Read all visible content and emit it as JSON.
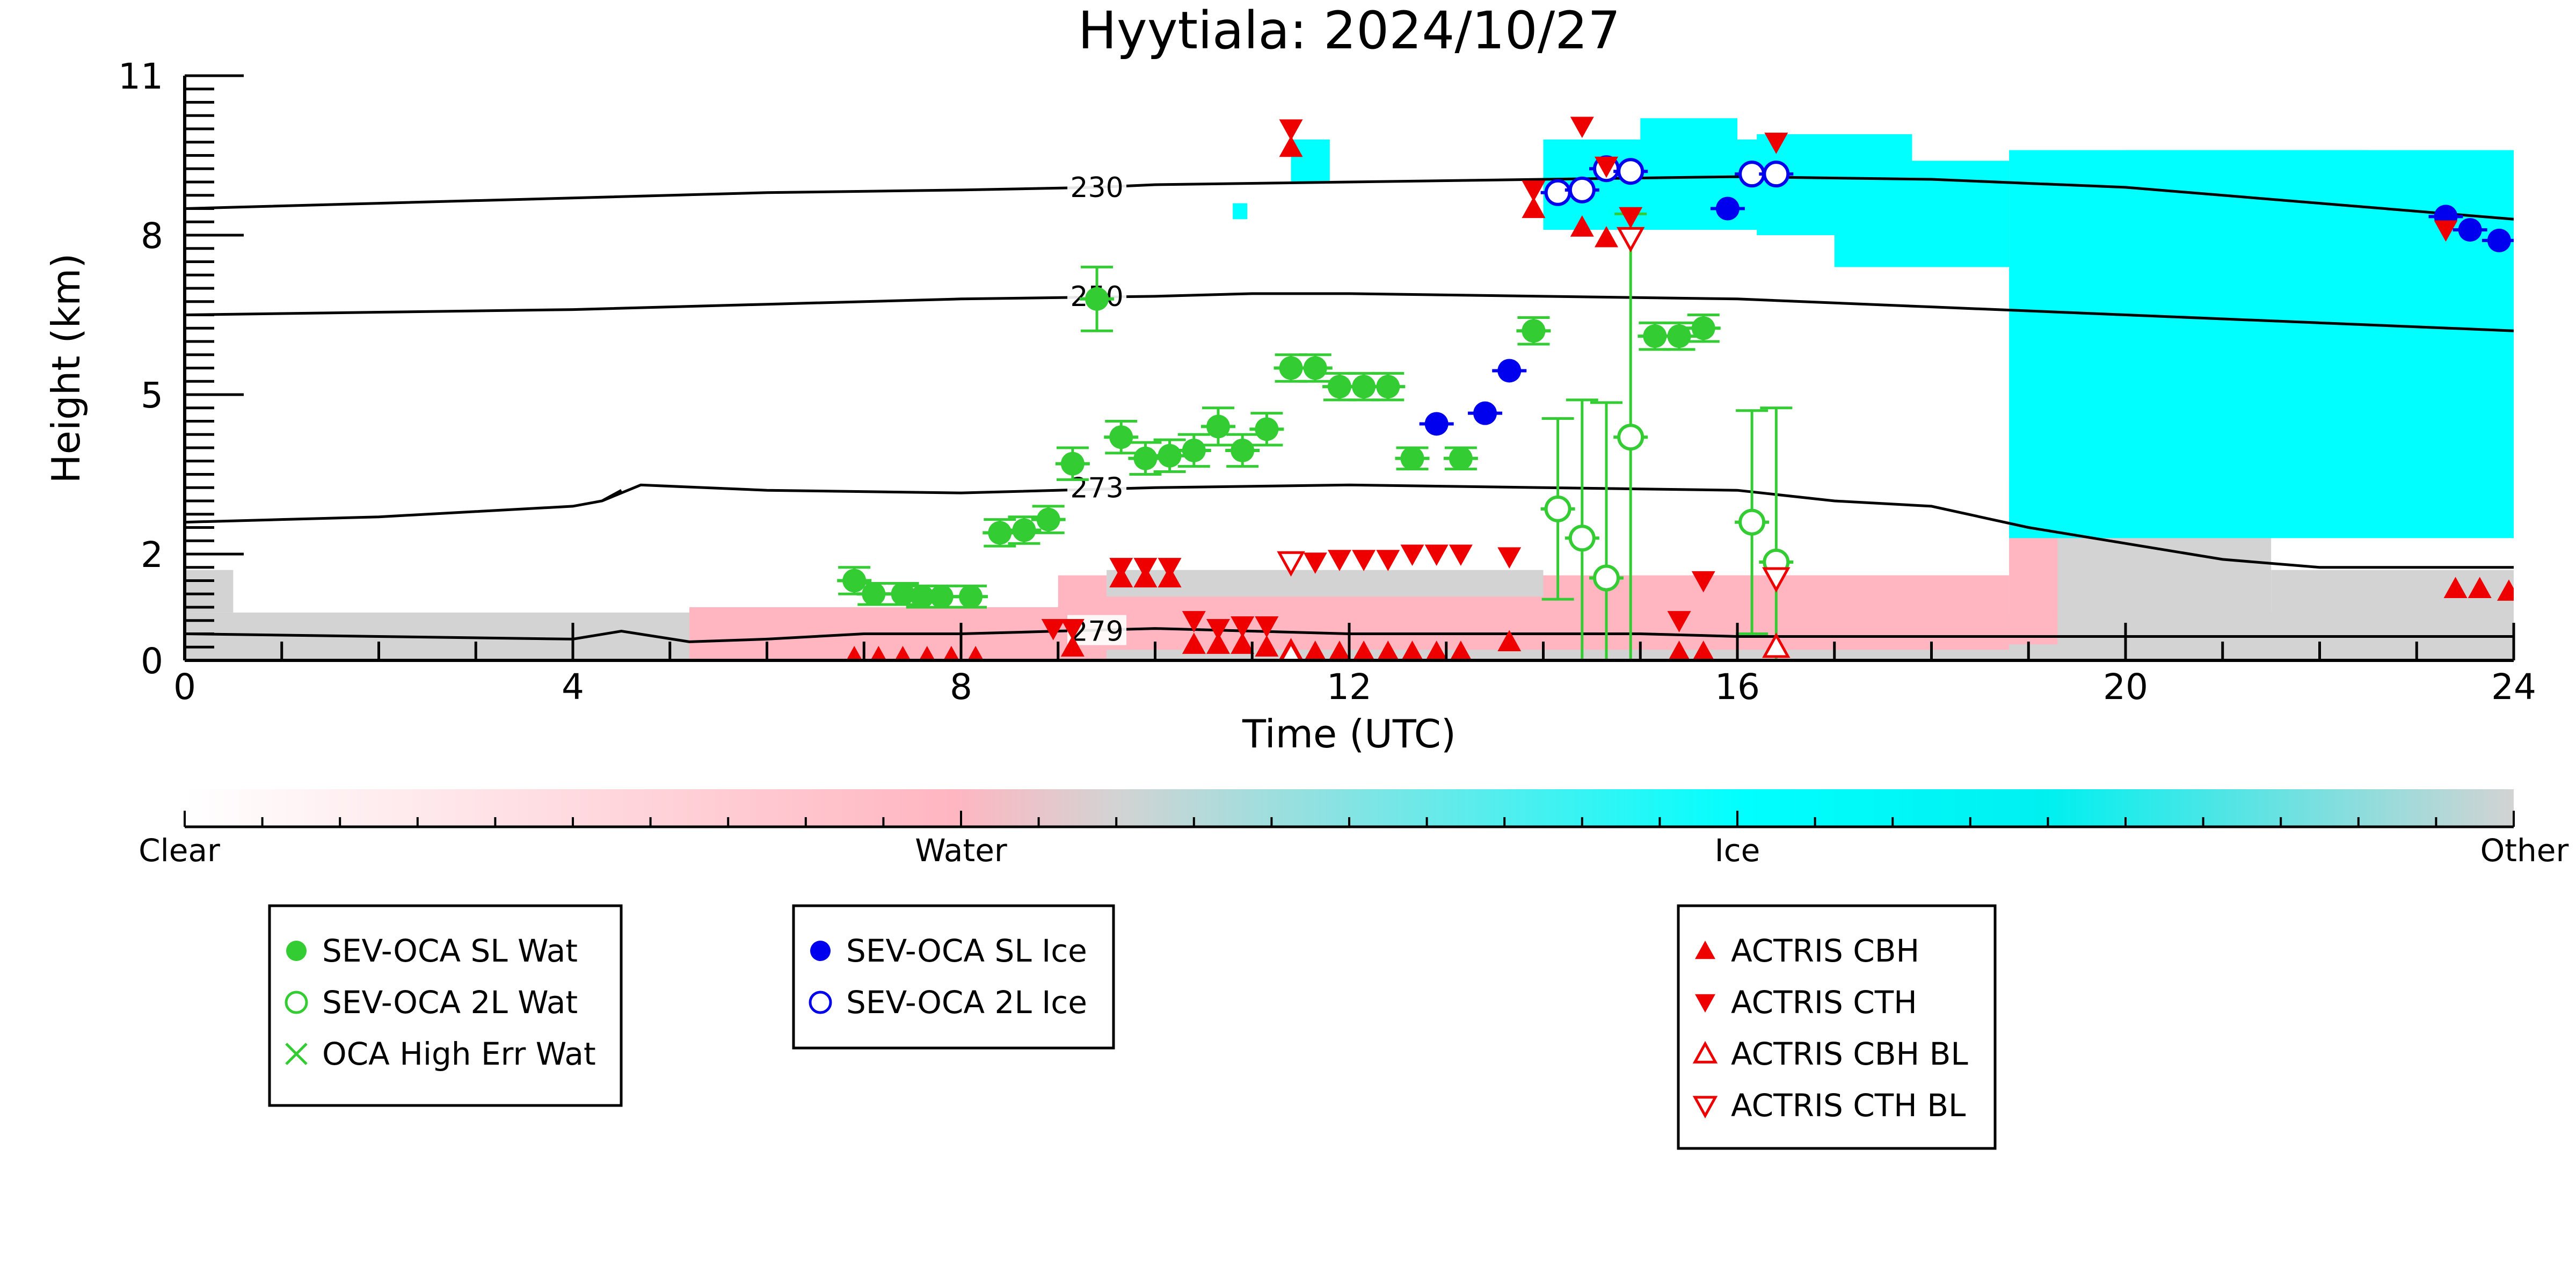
{
  "chart_data": {
    "type": "scatter",
    "title": "Hyytiala: 2024/10/27",
    "xlabel": "Time (UTC)",
    "ylabel": "Height (km)",
    "xlim": [
      0,
      24
    ],
    "ylim": [
      0,
      11
    ],
    "x_ticks": [
      "0",
      "4",
      "8",
      "12",
      "16",
      "20",
      "24"
    ],
    "y_ticks": [
      "0",
      "2",
      "5",
      "8",
      "11"
    ],
    "grid": false,
    "background_classification": {
      "colorbar_labels": [
        "Clear",
        "Water",
        "Ice",
        "Other"
      ],
      "colors": {
        "clear": "#ffffff",
        "water": "#ffb6c1",
        "ice": "#00ffff",
        "other": "#d3d3d3"
      }
    },
    "contours": [
      {
        "label": "230",
        "x": [
          0,
          2,
          4,
          6,
          8,
          9.4,
          10,
          12,
          14,
          16,
          18,
          20,
          22,
          24
        ],
        "y": [
          8.5,
          8.6,
          8.7,
          8.8,
          8.85,
          8.9,
          8.95,
          9.0,
          9.05,
          9.1,
          9.05,
          8.9,
          8.6,
          8.3
        ]
      },
      {
        "label": "250",
        "x": [
          0,
          2,
          4,
          6,
          8,
          10,
          11,
          12,
          14,
          16,
          18,
          20,
          22,
          24
        ],
        "y": [
          6.5,
          6.55,
          6.6,
          6.7,
          6.8,
          6.85,
          6.9,
          6.9,
          6.85,
          6.8,
          6.65,
          6.5,
          6.35,
          6.2
        ]
      },
      {
        "label": "273",
        "x": [
          0,
          1,
          2,
          3,
          4,
          4.3,
          4.5,
          4.3,
          4.7,
          6,
          8,
          10,
          12,
          14,
          16,
          17,
          18,
          19,
          20,
          21,
          22,
          23,
          24
        ],
        "y": [
          2.6,
          2.65,
          2.7,
          2.8,
          2.9,
          3.0,
          3.2,
          3.0,
          3.3,
          3.2,
          3.15,
          3.25,
          3.3,
          3.25,
          3.2,
          3.0,
          2.9,
          2.5,
          2.2,
          1.9,
          1.75,
          1.75,
          1.75
        ]
      },
      {
        "label": "279",
        "x": [
          0,
          2,
          4,
          4.5,
          5.2,
          6,
          7,
          8,
          9,
          10,
          11,
          12,
          13,
          14,
          15,
          16,
          18,
          20,
          22,
          24
        ],
        "y": [
          0.5,
          0.45,
          0.4,
          0.55,
          0.35,
          0.4,
          0.5,
          0.5,
          0.55,
          0.6,
          0.55,
          0.5,
          0.5,
          0.5,
          0.5,
          0.45,
          0.45,
          0.45,
          0.45,
          0.45
        ]
      }
    ],
    "series": [
      {
        "name": "SEV-OCA SL Wat",
        "marker": "filled-circle",
        "color": "#33cc33",
        "points": [
          {
            "x": 6.9,
            "y": 1.5,
            "err": 0.25
          },
          {
            "x": 7.1,
            "y": 1.25,
            "err": 0.2
          },
          {
            "x": 7.4,
            "y": 1.25,
            "err": 0.2
          },
          {
            "x": 7.6,
            "y": 1.2,
            "err": 0.2
          },
          {
            "x": 7.8,
            "y": 1.2,
            "err": 0.2
          },
          {
            "x": 8.1,
            "y": 1.2,
            "err": 0.2
          },
          {
            "x": 8.4,
            "y": 2.4,
            "err": 0.25
          },
          {
            "x": 8.65,
            "y": 2.45,
            "err": 0.25
          },
          {
            "x": 8.9,
            "y": 2.65,
            "err": 0.25
          },
          {
            "x": 9.15,
            "y": 3.7,
            "err": 0.3
          },
          {
            "x": 9.4,
            "y": 6.8,
            "err": 0.6
          },
          {
            "x": 9.65,
            "y": 4.2,
            "err": 0.3
          },
          {
            "x": 9.9,
            "y": 3.8,
            "err": 0.3
          },
          {
            "x": 10.15,
            "y": 3.85,
            "err": 0.3
          },
          {
            "x": 10.4,
            "y": 3.95,
            "err": 0.3
          },
          {
            "x": 10.65,
            "y": 4.4,
            "err": 0.35
          },
          {
            "x": 10.9,
            "y": 3.95,
            "err": 0.3
          },
          {
            "x": 11.15,
            "y": 4.35,
            "err": 0.3
          },
          {
            "x": 11.4,
            "y": 5.5,
            "err": 0.25
          },
          {
            "x": 11.65,
            "y": 5.5,
            "err": 0.25
          },
          {
            "x": 11.9,
            "y": 5.15,
            "err": 0.25
          },
          {
            "x": 12.15,
            "y": 5.15,
            "err": 0.25
          },
          {
            "x": 12.4,
            "y": 5.15,
            "err": 0.25
          },
          {
            "x": 12.65,
            "y": 3.8,
            "err": 0.2
          },
          {
            "x": 13.15,
            "y": 3.8,
            "err": 0.2
          },
          {
            "x": 13.9,
            "y": 6.2,
            "err": 0.25
          },
          {
            "x": 15.15,
            "y": 6.1,
            "err": 0.25
          },
          {
            "x": 15.4,
            "y": 6.1,
            "err": 0.25
          },
          {
            "x": 15.65,
            "y": 6.25,
            "err": 0.25
          }
        ]
      },
      {
        "name": "SEV-OCA 2L Wat",
        "marker": "open-circle",
        "color": "#33cc33",
        "points": [
          {
            "x": 14.15,
            "y": 2.85,
            "err": 1.7
          },
          {
            "x": 14.4,
            "y": 2.3,
            "err": 2.6
          },
          {
            "x": 14.65,
            "y": 1.55,
            "err": 3.3
          },
          {
            "x": 14.9,
            "y": 4.2,
            "err": 4.2
          },
          {
            "x": 16.15,
            "y": 2.6,
            "err": 2.1
          },
          {
            "x": 16.4,
            "y": 1.85,
            "err": 2.9
          }
        ]
      },
      {
        "name": "OCA High Err Wat",
        "marker": "x",
        "color": "#33cc33",
        "points": []
      },
      {
        "name": "SEV-OCA SL Ice",
        "marker": "filled-circle",
        "color": "#0000ee",
        "points": [
          {
            "x": 12.9,
            "y": 4.45
          },
          {
            "x": 13.4,
            "y": 4.65
          },
          {
            "x": 13.65,
            "y": 5.45
          },
          {
            "x": 15.9,
            "y": 8.5
          },
          {
            "x": 23.3,
            "y": 8.35
          },
          {
            "x": 23.55,
            "y": 8.1
          },
          {
            "x": 23.85,
            "y": 7.9
          }
        ]
      },
      {
        "name": "SEV-OCA 2L Ice",
        "marker": "open-circle",
        "color": "#0000ee",
        "points": [
          {
            "x": 14.15,
            "y": 8.8
          },
          {
            "x": 14.4,
            "y": 8.85
          },
          {
            "x": 14.65,
            "y": 9.25
          },
          {
            "x": 14.9,
            "y": 9.2
          },
          {
            "x": 16.15,
            "y": 9.15
          },
          {
            "x": 16.4,
            "y": 9.15
          }
        ]
      },
      {
        "name": "ACTRIS CBH",
        "marker": "triangle-up",
        "color": "#ee0000",
        "points": [
          {
            "x": 6.9,
            "y": 0.05
          },
          {
            "x": 7.15,
            "y": 0.05
          },
          {
            "x": 7.4,
            "y": 0.05
          },
          {
            "x": 7.65,
            "y": 0.05
          },
          {
            "x": 7.9,
            "y": 0.05
          },
          {
            "x": 8.15,
            "y": 0.05
          },
          {
            "x": 9.15,
            "y": 0.25
          },
          {
            "x": 9.65,
            "y": 1.55
          },
          {
            "x": 9.9,
            "y": 1.55
          },
          {
            "x": 10.15,
            "y": 1.55
          },
          {
            "x": 10.4,
            "y": 0.3
          },
          {
            "x": 10.65,
            "y": 0.3
          },
          {
            "x": 10.9,
            "y": 0.3
          },
          {
            "x": 11.15,
            "y": 0.25
          },
          {
            "x": 11.4,
            "y": 0.2
          },
          {
            "x": 11.65,
            "y": 0.15
          },
          {
            "x": 11.9,
            "y": 0.15
          },
          {
            "x": 12.15,
            "y": 0.15
          },
          {
            "x": 12.4,
            "y": 0.15
          },
          {
            "x": 12.65,
            "y": 0.15
          },
          {
            "x": 12.9,
            "y": 0.15
          },
          {
            "x": 13.15,
            "y": 0.15
          },
          {
            "x": 13.65,
            "y": 0.35
          },
          {
            "x": 13.9,
            "y": 8.5
          },
          {
            "x": 14.4,
            "y": 8.15
          },
          {
            "x": 14.65,
            "y": 7.95
          },
          {
            "x": 15.4,
            "y": 0.15
          },
          {
            "x": 15.65,
            "y": 0.15
          },
          {
            "x": 23.4,
            "y": 1.35
          },
          {
            "x": 23.65,
            "y": 1.35
          },
          {
            "x": 23.95,
            "y": 1.3
          },
          {
            "x": 11.4,
            "y": 9.65
          }
        ]
      },
      {
        "name": "ACTRIS CTH",
        "marker": "triangle-down",
        "color": "#ee0000",
        "points": [
          {
            "x": 8.95,
            "y": 0.6
          },
          {
            "x": 9.15,
            "y": 0.6
          },
          {
            "x": 9.65,
            "y": 1.75
          },
          {
            "x": 9.9,
            "y": 1.75
          },
          {
            "x": 10.15,
            "y": 1.75
          },
          {
            "x": 10.4,
            "y": 0.75
          },
          {
            "x": 10.65,
            "y": 0.6
          },
          {
            "x": 10.9,
            "y": 0.65
          },
          {
            "x": 11.15,
            "y": 0.65
          },
          {
            "x": 11.4,
            "y": 1.85
          },
          {
            "x": 11.65,
            "y": 1.85
          },
          {
            "x": 11.9,
            "y": 1.9
          },
          {
            "x": 12.15,
            "y": 1.9
          },
          {
            "x": 12.4,
            "y": 1.9
          },
          {
            "x": 12.65,
            "y": 2.0
          },
          {
            "x": 12.9,
            "y": 2.0
          },
          {
            "x": 13.15,
            "y": 2.0
          },
          {
            "x": 13.65,
            "y": 1.95
          },
          {
            "x": 13.9,
            "y": 8.85
          },
          {
            "x": 14.4,
            "y": 10.05
          },
          {
            "x": 14.65,
            "y": 9.3
          },
          {
            "x": 14.9,
            "y": 8.35
          },
          {
            "x": 15.4,
            "y": 0.75
          },
          {
            "x": 15.65,
            "y": 1.5
          },
          {
            "x": 16.4,
            "y": 9.75
          },
          {
            "x": 11.4,
            "y": 10.0
          },
          {
            "x": 23.3,
            "y": 8.1
          }
        ]
      },
      {
        "name": "ACTRIS CBH BL",
        "marker": "open-triangle-up",
        "color": "#ee0000",
        "points": [
          {
            "x": 11.4,
            "y": 0.1
          },
          {
            "x": 16.4,
            "y": 0.25
          }
        ]
      },
      {
        "name": "ACTRIS CTH BL",
        "marker": "open-triangle-down",
        "color": "#ee0000",
        "points": [
          {
            "x": 11.4,
            "y": 1.85
          },
          {
            "x": 14.9,
            "y": 7.95
          },
          {
            "x": 16.4,
            "y": 1.55
          }
        ]
      }
    ],
    "legends": [
      [
        "SEV-OCA SL Wat",
        "SEV-OCA 2L Wat",
        "OCA High Err Wat"
      ],
      [
        "SEV-OCA SL Ice",
        "SEV-OCA 2L Ice"
      ],
      [
        "ACTRIS CBH",
        "ACTRIS CTH",
        "ACTRIS CBH BL",
        "ACTRIS CTH BL"
      ]
    ]
  }
}
